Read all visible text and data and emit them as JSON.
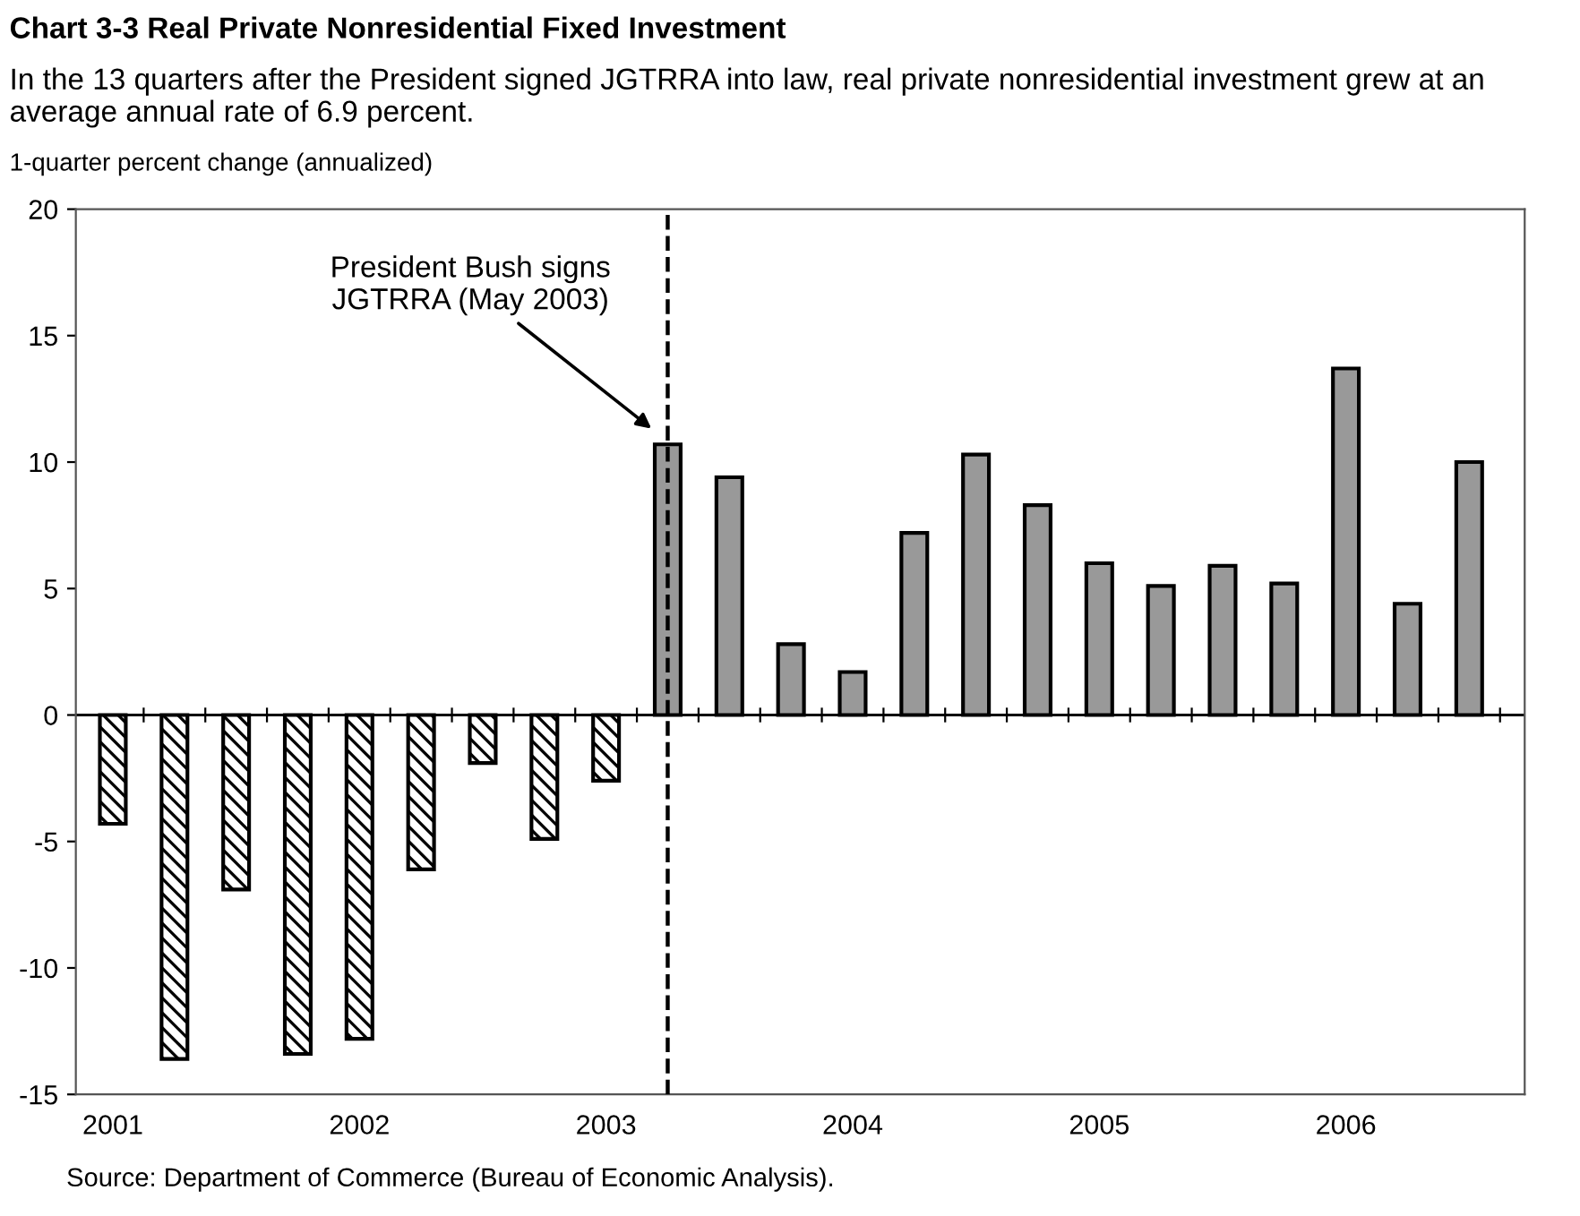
{
  "chart_data": {
    "type": "bar",
    "title": "Chart 3-3 Real Private Nonresidential Fixed Investment",
    "subtitle": "In the 13 quarters after the President signed JGTRRA into law, real private nonresidential investment grew at an average annual rate of 6.9 percent.",
    "ylabel": "1-quarter percent change (annualized)",
    "categories": [
      "2001",
      null,
      null,
      null,
      "2002",
      null,
      null,
      null,
      "2003",
      null,
      null,
      null,
      "2004",
      null,
      null,
      null,
      "2005",
      null,
      null,
      null,
      "2006",
      null,
      null
    ],
    "series": [
      {
        "color": "#000000",
        "values": [
          -4.3,
          -13.6,
          -6.9,
          -13.4,
          -12.8,
          -6.1,
          -1.9,
          -4.9,
          -2.6,
          null,
          null,
          null,
          null,
          null,
          null,
          null,
          null,
          null,
          null,
          null,
          null,
          null,
          null
        ]
      },
      {
        "color": "#999999",
        "values": [
          null,
          null,
          null,
          null,
          null,
          null,
          null,
          null,
          null,
          10.7,
          9.4,
          2.8,
          1.7,
          7.2,
          10.3,
          8.3,
          6.0,
          5.1,
          5.9,
          5.2,
          13.7,
          4.4,
          10.0
        ]
      }
    ],
    "ylim": [
      -15,
      20
    ],
    "yticks": [
      -15,
      -10,
      -5,
      0,
      5,
      10,
      15,
      20
    ],
    "grid": false,
    "legend": false,
    "annotations": [
      "President Bush signs\nJGTRRA (May 2003)",
      "Source: Department of Commerce (Bureau of Economic Analysis)."
    ]
  }
}
